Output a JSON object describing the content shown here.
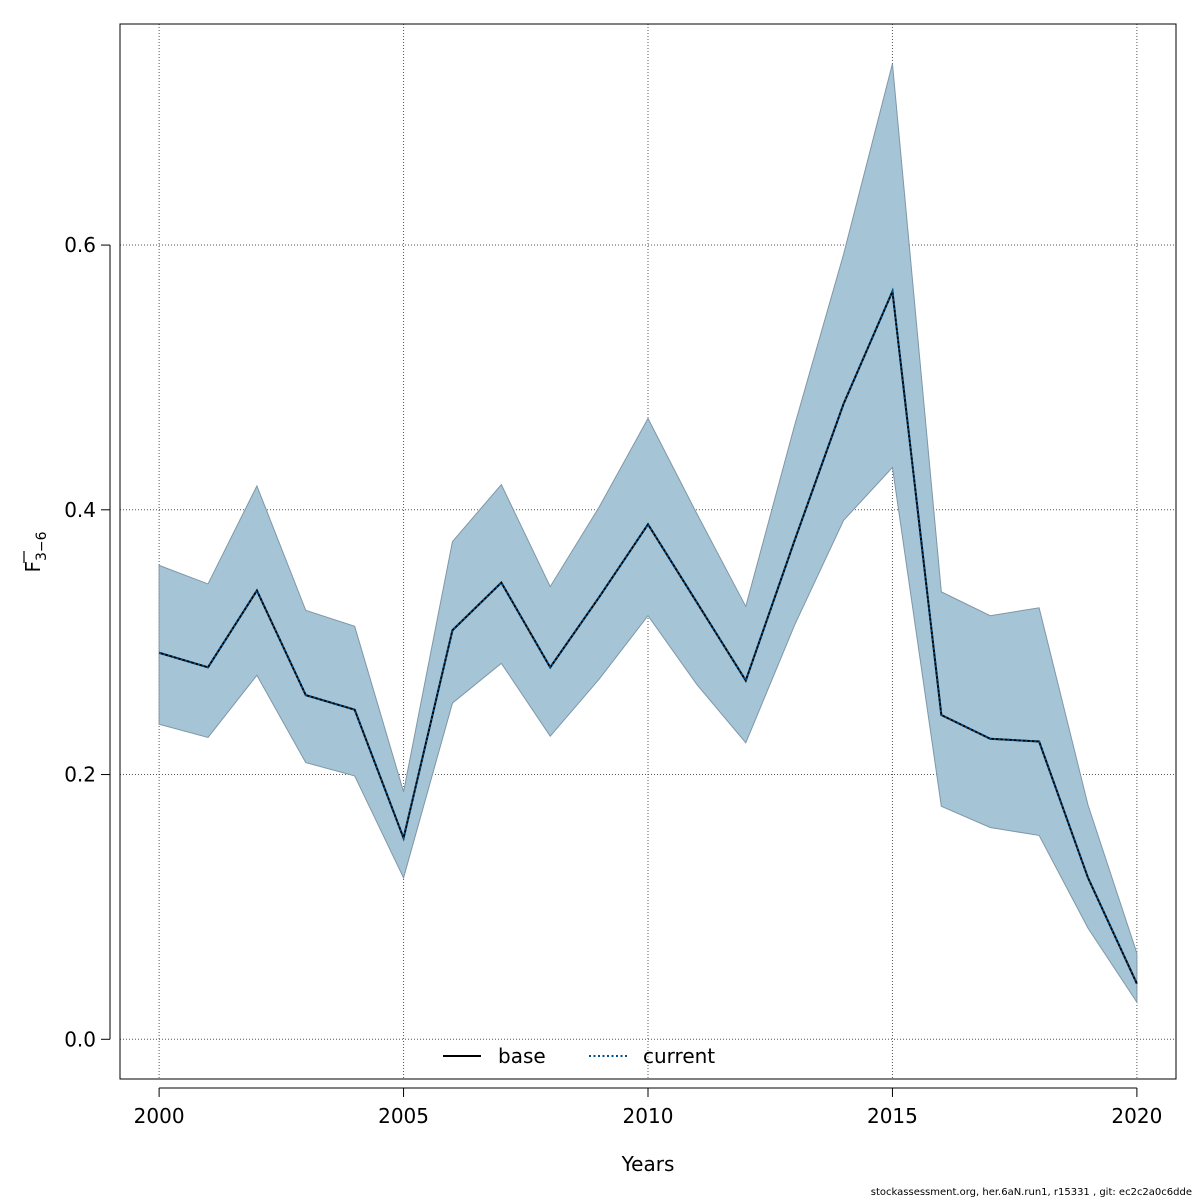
{
  "chart_data": {
    "type": "line",
    "xlabel": "Years",
    "ylabel": "F",
    "ylabel_subscript": "3−6",
    "xlim": [
      1999.2,
      2020.8
    ],
    "ylim": [
      -0.03,
      0.767
    ],
    "x_ticks": [
      2000,
      2005,
      2010,
      2015,
      2020
    ],
    "y_ticks": [
      0.0,
      0.2,
      0.4,
      0.6
    ],
    "y_tick_labels": [
      "0.0",
      "0.2",
      "0.4",
      "0.6"
    ],
    "grid": true,
    "legend_position": "bottom",
    "x": [
      2000,
      2001,
      2002,
      2003,
      2004,
      2005,
      2006,
      2007,
      2008,
      2009,
      2010,
      2011,
      2012,
      2013,
      2014,
      2015,
      2016,
      2017,
      2018,
      2019,
      2020
    ],
    "series": [
      {
        "name": "base",
        "style": "solid",
        "color": "#000000",
        "values": [
          0.292,
          0.281,
          0.339,
          0.26,
          0.249,
          0.152,
          0.309,
          0.345,
          0.281,
          0.334,
          0.389,
          0.33,
          0.271,
          0.377,
          0.48,
          0.565,
          0.245,
          0.227,
          0.225,
          0.122,
          0.042
        ]
      },
      {
        "name": "current",
        "style": "dotted",
        "color": "#00508c",
        "values": [
          0.292,
          0.281,
          0.339,
          0.26,
          0.249,
          0.152,
          0.309,
          0.345,
          0.281,
          0.334,
          0.389,
          0.33,
          0.271,
          0.377,
          0.48,
          0.565,
          0.245,
          0.227,
          0.225,
          0.122,
          0.042
        ]
      }
    ],
    "confidence_band": {
      "color": "#a5c4d6",
      "upper": [
        0.358,
        0.344,
        0.418,
        0.324,
        0.312,
        0.187,
        0.376,
        0.419,
        0.342,
        0.402,
        0.469,
        0.397,
        0.327,
        0.464,
        0.593,
        0.737,
        0.338,
        0.32,
        0.326,
        0.177,
        0.065
      ],
      "lower": [
        0.238,
        0.228,
        0.275,
        0.209,
        0.199,
        0.122,
        0.254,
        0.284,
        0.229,
        0.272,
        0.32,
        0.268,
        0.224,
        0.313,
        0.392,
        0.432,
        0.176,
        0.16,
        0.154,
        0.084,
        0.028
      ]
    }
  },
  "footer": {
    "text": "stockassessment.org, her.6aN.run1, r15331 , git: ec2c2a0c6dde"
  }
}
